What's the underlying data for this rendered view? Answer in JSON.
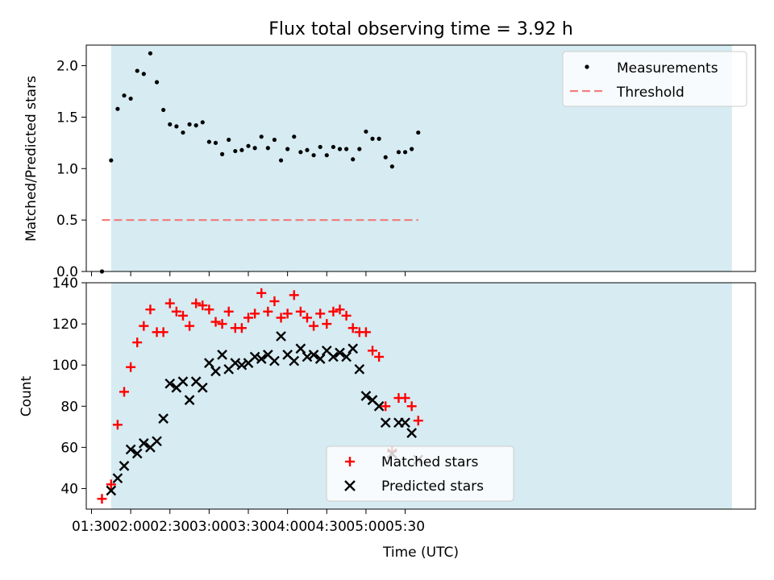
{
  "chart_data": [
    {
      "type": "scatter",
      "title": "Flux total observing time = 3.92 h",
      "xlabel": "",
      "ylabel": "Matched/Predicted stars",
      "ylim": [
        0,
        2.2
      ],
      "yticks": [
        "0.0",
        "0.5",
        "1.0",
        "1.5",
        "2.0"
      ],
      "xlim_minutes": [
        86,
        598
      ],
      "shaded_span_minutes": [
        105,
        580
      ],
      "shade_color": "#add8e6",
      "legend": {
        "position": "upper right",
        "entries": [
          "Measurements",
          "Threshold"
        ]
      },
      "threshold": {
        "name": "Threshold",
        "value": 0.5,
        "x_range": [
          "01:38",
          "05:40"
        ],
        "color": "#f08080"
      },
      "series": [
        {
          "name": "Measurements",
          "color": "#000000",
          "x": [
            "01:38",
            "01:45",
            "01:50",
            "01:55",
            "02:00",
            "02:05",
            "02:10",
            "02:15",
            "02:20",
            "02:25",
            "02:30",
            "02:35",
            "02:40",
            "02:45",
            "02:50",
            "02:55",
            "03:00",
            "03:05",
            "03:10",
            "03:15",
            "03:20",
            "03:25",
            "03:30",
            "03:35",
            "03:40",
            "03:45",
            "03:50",
            "03:55",
            "04:00",
            "04:05",
            "04:10",
            "04:15",
            "04:20",
            "04:25",
            "04:30",
            "04:35",
            "04:40",
            "04:45",
            "04:50",
            "04:55",
            "05:00",
            "05:05",
            "05:10",
            "05:15",
            "05:20",
            "05:25",
            "05:30",
            "05:35",
            "05:40"
          ],
          "y": [
            0.0,
            1.08,
            1.58,
            1.71,
            1.68,
            1.95,
            1.92,
            2.12,
            1.84,
            1.57,
            1.43,
            1.41,
            1.35,
            1.43,
            1.42,
            1.45,
            1.26,
            1.25,
            1.14,
            1.28,
            1.17,
            1.18,
            1.22,
            1.2,
            1.31,
            1.2,
            1.28,
            1.08,
            1.19,
            1.31,
            1.16,
            1.18,
            1.13,
            1.21,
            1.13,
            1.21,
            1.19,
            1.19,
            1.09,
            1.19,
            1.36,
            1.29,
            1.29,
            1.11,
            1.02,
            1.16,
            1.16,
            1.19,
            1.35
          ]
        }
      ]
    },
    {
      "type": "scatter",
      "xlabel": "Time (UTC)",
      "ylabel": "Count",
      "ylim": [
        30,
        140
      ],
      "yticks": [
        "40",
        "60",
        "80",
        "100",
        "120",
        "140"
      ],
      "xticks": [
        "01:30",
        "02:00",
        "02:30",
        "03:00",
        "03:30",
        "04:00",
        "04:30",
        "05:00",
        "05:30"
      ],
      "xlim_minutes": [
        86,
        598
      ],
      "shaded_span_minutes": [
        105,
        580
      ],
      "shade_color": "#add8e6",
      "legend": {
        "position": "lower center",
        "entries": [
          "Matched stars",
          "Predicted stars"
        ]
      },
      "series": [
        {
          "name": "Matched stars",
          "marker": "plus",
          "color": "#ff0000",
          "x": [
            "01:38",
            "01:45",
            "01:50",
            "01:55",
            "02:00",
            "02:05",
            "02:10",
            "02:15",
            "02:20",
            "02:25",
            "02:30",
            "02:35",
            "02:40",
            "02:45",
            "02:50",
            "02:55",
            "03:00",
            "03:05",
            "03:10",
            "03:15",
            "03:20",
            "03:25",
            "03:30",
            "03:35",
            "03:40",
            "03:45",
            "03:50",
            "03:55",
            "04:00",
            "04:05",
            "04:10",
            "04:15",
            "04:20",
            "04:25",
            "04:30",
            "04:35",
            "04:40",
            "04:45",
            "04:50",
            "04:55",
            "05:00",
            "05:05",
            "05:10",
            "05:15",
            "05:20",
            "05:25",
            "05:30",
            "05:35",
            "05:40"
          ],
          "y": [
            35,
            42,
            71,
            87,
            99,
            111,
            119,
            127,
            116,
            116,
            130,
            126,
            124,
            119,
            130,
            129,
            127,
            121,
            120,
            126,
            118,
            118,
            123,
            125,
            135,
            126,
            131,
            123,
            125,
            134,
            126,
            123,
            119,
            125,
            120,
            126,
            127,
            124,
            118,
            116,
            116,
            107,
            104,
            80,
            58,
            84,
            84,
            80,
            73
          ]
        },
        {
          "name": "Predicted stars",
          "marker": "x",
          "color": "#000000",
          "x": [
            "01:45",
            "01:50",
            "01:55",
            "02:00",
            "02:05",
            "02:10",
            "02:15",
            "02:20",
            "02:25",
            "02:30",
            "02:35",
            "02:40",
            "02:45",
            "02:50",
            "02:55",
            "03:00",
            "03:05",
            "03:10",
            "03:15",
            "03:20",
            "03:25",
            "03:30",
            "03:35",
            "03:40",
            "03:45",
            "03:50",
            "03:55",
            "04:00",
            "04:05",
            "04:10",
            "04:15",
            "04:20",
            "04:25",
            "04:30",
            "04:35",
            "04:40",
            "04:45",
            "04:50",
            "04:55",
            "05:00",
            "05:05",
            "05:10",
            "05:15",
            "05:20",
            "05:25",
            "05:30",
            "05:35",
            "05:40"
          ],
          "y": [
            39,
            45,
            51,
            59,
            57,
            62,
            60,
            63,
            74,
            91,
            89,
            92,
            83,
            92,
            89,
            101,
            97,
            105,
            98,
            101,
            100,
            101,
            104,
            103,
            105,
            102,
            114,
            105,
            102,
            108,
            104,
            105,
            103,
            107,
            104,
            106,
            104,
            108,
            98,
            85,
            83,
            80,
            72,
            57,
            72,
            72,
            67,
            54
          ]
        }
      ]
    }
  ]
}
